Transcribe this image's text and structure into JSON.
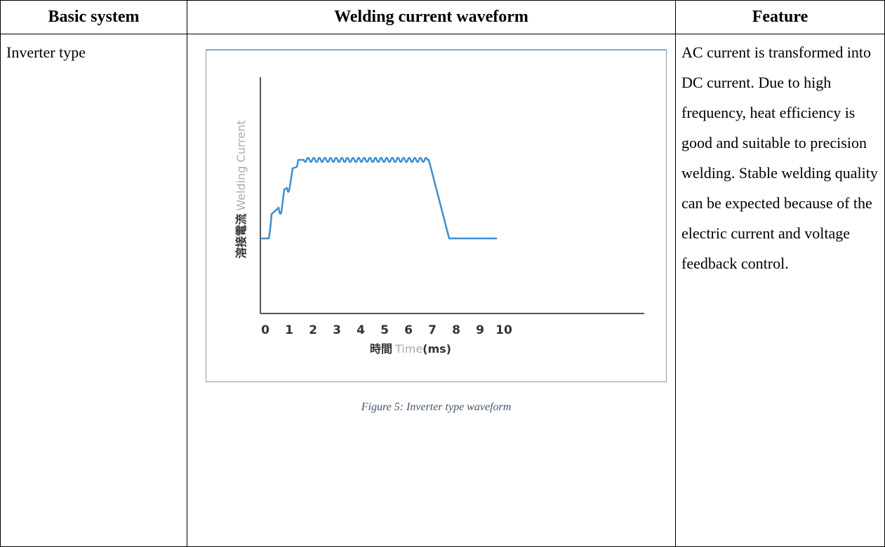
{
  "table": {
    "header": [
      "Basic system",
      "Welding current waveform",
      "Feature"
    ],
    "rows": [
      [
        "Inverter type",
        "AC current is transformed into DC current. Due to high frequency, heat efficiency is good and suitable to precision welding. Stable welding quality can be expected because of the electric current and voltage feedback control."
      ]
    ]
  },
  "figure": {
    "y_label": [
      "溶接電流",
      "Welding Current"
    ],
    "x_label": [
      "時間",
      "Time",
      "(ms)"
    ],
    "x_ticks": [
      0,
      1,
      2,
      3,
      4,
      5,
      6,
      7,
      8,
      9,
      10
    ],
    "caption": "Figure 5: Inverter type waveform"
  }
}
